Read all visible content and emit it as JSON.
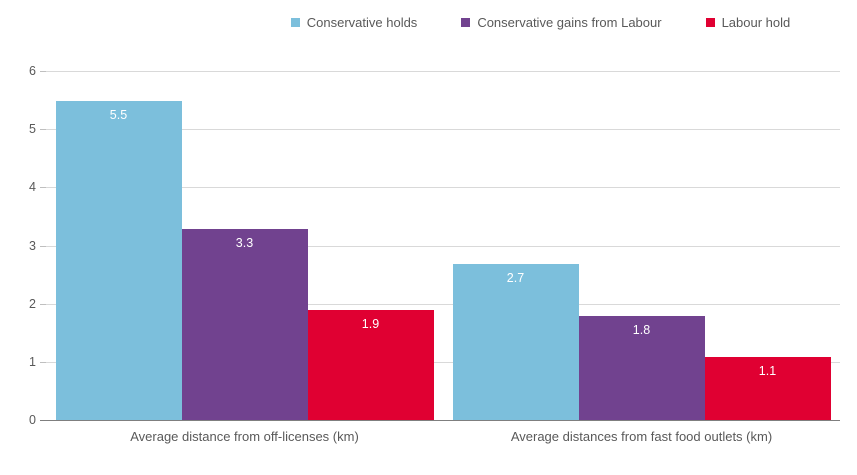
{
  "chart_data": {
    "type": "bar",
    "title": "",
    "categories": [
      "Average distance from off-licenses (km)",
      "Average distances from fast food outlets (km)"
    ],
    "series": [
      {
        "name": "Conservative holds",
        "color": "#7cbfdc",
        "values": [
          5.5,
          2.7
        ]
      },
      {
        "name": "Conservative gains from Labour",
        "color": "#71428f",
        "values": [
          3.3,
          1.8
        ]
      },
      {
        "name": "Labour hold",
        "color": "#e00032",
        "values": [
          1.9,
          1.1
        ]
      }
    ],
    "xlabel": "",
    "ylabel": "",
    "ylim": [
      0,
      6
    ],
    "yticks": [
      0,
      1,
      2,
      3,
      4,
      5,
      6
    ],
    "grid": true,
    "legend_position": "top",
    "data_label_style": "inside-end, white, one decimal place"
  },
  "style": {
    "background_color": "#ffffff",
    "gridline_color": "#d9d9d9",
    "axis_line_color": "#7f7f7f",
    "text_color": "#595959",
    "bar_label_color": "#ffffff"
  }
}
